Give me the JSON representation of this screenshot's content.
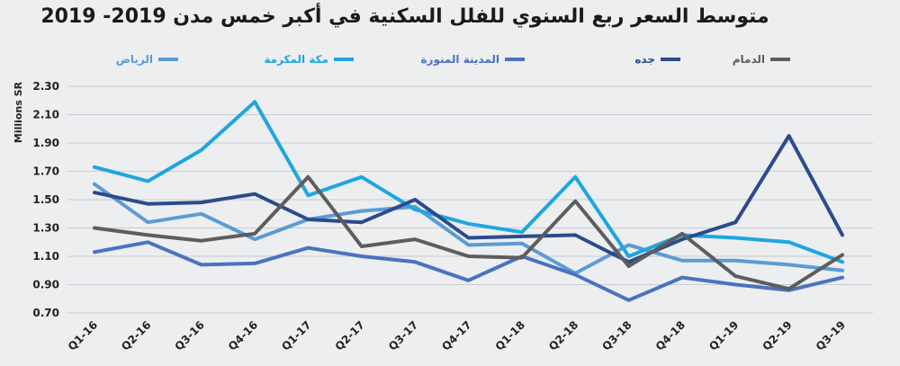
{
  "chart_data": {
    "type": "line",
    "title": "متوسط السعر ربع السنوي للفلل السكنية في أكبر خمس مدن 2019- 2019",
    "ylabel": "Millions SR",
    "xlabel": "",
    "ylim": [
      0.7,
      2.3
    ],
    "yticks": [
      "0.70",
      "0.90",
      "1.10",
      "1.30",
      "1.50",
      "1.70",
      "1.90",
      "2.10",
      "2.30"
    ],
    "grid": true,
    "legend_position": "top",
    "categories": [
      "Q1-16",
      "Q2-16",
      "Q3-16",
      "Q4-16",
      "Q1-17",
      "Q2-17",
      "Q3-17",
      "Q4-17",
      "Q1-18",
      "Q2-18",
      "Q3-18",
      "Q4-18",
      "Q1-19",
      "Q2-19",
      "Q3-19"
    ],
    "series": [
      {
        "name": "الرياض",
        "color": "#5b9bd5",
        "values": [
          1.61,
          1.34,
          1.4,
          1.22,
          1.36,
          1.42,
          1.45,
          1.18,
          1.19,
          0.98,
          1.18,
          1.07,
          1.07,
          1.04,
          1.0
        ]
      },
      {
        "name": "مكة المكرمة",
        "color": "#1fa6e0",
        "values": [
          1.73,
          1.63,
          1.85,
          2.19,
          1.53,
          1.66,
          1.43,
          1.33,
          1.27,
          1.66,
          1.1,
          1.25,
          1.23,
          1.2,
          1.06
        ]
      },
      {
        "name": "المدينة المنورة",
        "color": "#4a72c0",
        "values": [
          1.13,
          1.2,
          1.04,
          1.05,
          1.16,
          1.1,
          1.06,
          0.93,
          1.1,
          0.97,
          0.79,
          0.95,
          0.9,
          0.86,
          0.95
        ]
      },
      {
        "name": "جده",
        "color": "#2b4b8c",
        "values": [
          1.55,
          1.47,
          1.48,
          1.54,
          1.36,
          1.34,
          1.5,
          1.23,
          1.24,
          1.25,
          1.06,
          1.22,
          1.34,
          1.95,
          1.25
        ]
      },
      {
        "name": "الدمام",
        "color": "#5d5d5d",
        "values": [
          1.3,
          1.25,
          1.21,
          1.26,
          1.66,
          1.17,
          1.22,
          1.1,
          1.09,
          1.49,
          1.03,
          1.26,
          0.96,
          0.87,
          1.11
        ]
      }
    ]
  }
}
